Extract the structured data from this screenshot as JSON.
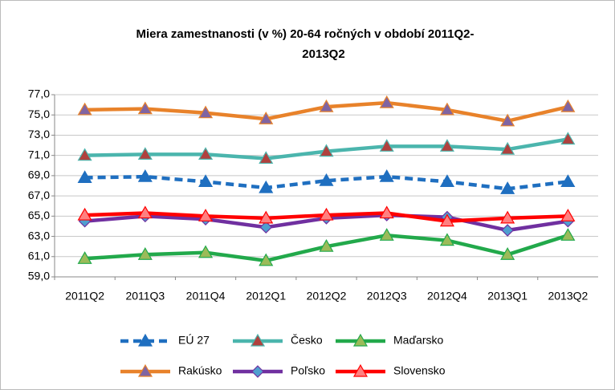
{
  "chart_data": {
    "type": "line",
    "title": [
      "Miera zamestnanosti  (v %) 20-64  ročných  v období 2011Q2-",
      "2013Q2"
    ],
    "categories": [
      "2011Q2",
      "2011Q3",
      "2011Q4",
      "2012Q1",
      "2012Q2",
      "2012Q3",
      "2012Q4",
      "2013Q1",
      "2013Q2"
    ],
    "ylim": [
      59,
      77
    ],
    "yticks": [
      {
        "value": 59,
        "label": "59,0"
      },
      {
        "value": 61,
        "label": "61,0"
      },
      {
        "value": 63,
        "label": "63,0"
      },
      {
        "value": 65,
        "label": "65,0"
      },
      {
        "value": 67,
        "label": "67,0"
      },
      {
        "value": 69,
        "label": "69,0"
      },
      {
        "value": 71,
        "label": "71,0"
      },
      {
        "value": 73,
        "label": "73,0"
      },
      {
        "value": 75,
        "label": "75,0"
      },
      {
        "value": 77,
        "label": "77,0"
      }
    ],
    "grid": true,
    "series": [
      {
        "name": "EÚ 27",
        "color": "#1f6fc0",
        "marker_color": "#1f6fc0",
        "marker": "triangle",
        "dashed": true,
        "values": [
          68.8,
          68.9,
          68.4,
          67.8,
          68.5,
          68.9,
          68.4,
          67.7,
          68.4
        ]
      },
      {
        "name": "Česko",
        "color": "#4bb5ad",
        "marker_color": "#b0413e",
        "marker": "triangle",
        "values": [
          71.0,
          71.1,
          71.1,
          70.7,
          71.4,
          71.9,
          71.9,
          71.6,
          72.6
        ]
      },
      {
        "name": "Maďarsko",
        "color": "#22a94b",
        "marker_color": "#9bbb59",
        "marker": "triangle",
        "values": [
          60.8,
          61.2,
          61.4,
          60.6,
          62.0,
          63.1,
          62.6,
          61.2,
          63.1
        ]
      },
      {
        "name": "Rakúsko",
        "color": "#e8822a",
        "marker_color": "#8064a2",
        "marker": "triangle",
        "values": [
          75.5,
          75.6,
          75.2,
          74.6,
          75.8,
          76.2,
          75.5,
          74.4,
          75.8
        ]
      },
      {
        "name": "Poľsko",
        "color": "#7030a0",
        "marker_color": "#4f9fcf",
        "marker": "diamond",
        "values": [
          64.5,
          65.0,
          64.7,
          63.9,
          64.8,
          65.1,
          64.9,
          63.6,
          64.5
        ]
      },
      {
        "name": "Slovensko",
        "color": "#ff0000",
        "marker_color": "#ff8080",
        "marker": "triangle",
        "values": [
          65.1,
          65.3,
          65.0,
          64.8,
          65.1,
          65.3,
          64.5,
          64.8,
          65.0
        ]
      }
    ]
  }
}
